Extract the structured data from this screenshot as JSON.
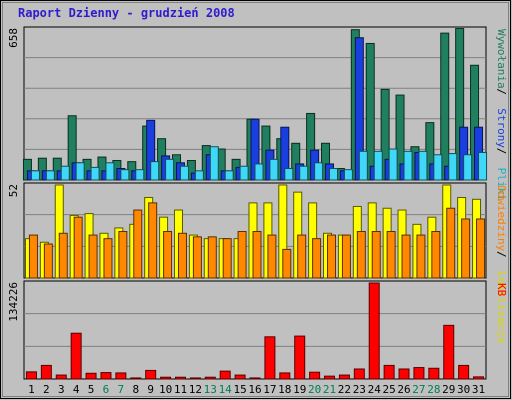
{
  "chart_data": [
    {
      "type": "bar",
      "title": "Raport Dzienny -  grudzień 2008",
      "ymax_label": "658",
      "categories": [
        "1",
        "2",
        "3",
        "4",
        "5",
        "6",
        "7",
        "8",
        "9",
        "10",
        "11",
        "12",
        "13",
        "14",
        "15",
        "16",
        "17",
        "18",
        "19",
        "20",
        "21",
        "22",
        "23",
        "24",
        "25",
        "26",
        "27",
        "28",
        "29",
        "30",
        "31"
      ],
      "weekend_days": [
        "6",
        "7",
        "13",
        "14",
        "20",
        "21",
        "27",
        "28"
      ],
      "series": [
        {
          "name": "Wywołania",
          "color": "#1f7f5f",
          "values": [
            90,
            95,
            95,
            280,
            90,
            100,
            85,
            80,
            235,
            180,
            110,
            85,
            150,
            135,
            90,
            265,
            235,
            180,
            160,
            290,
            160,
            50,
            655,
            595,
            395,
            370,
            145,
            250,
            640,
            660,
            500
          ]
        },
        {
          "name": "Strony",
          "color": "#1a3fe0",
          "values": [
            40,
            40,
            40,
            75,
            40,
            40,
            50,
            40,
            260,
            105,
            75,
            30,
            110,
            40,
            55,
            265,
            130,
            230,
            70,
            130,
            70,
            40,
            620,
            60,
            90,
            70,
            120,
            70,
            60,
            230,
            230
          ]
        },
        {
          "name": "Pliki",
          "color": "#40d8f8",
          "values": [
            40,
            40,
            60,
            75,
            55,
            75,
            45,
            45,
            80,
            90,
            60,
            40,
            145,
            40,
            60,
            70,
            90,
            50,
            60,
            75,
            50,
            45,
            125,
            125,
            135,
            125,
            125,
            110,
            115,
            110,
            120
          ]
        }
      ],
      "series_label_colors": [
        "#1f7f5f",
        "#1a3fe0",
        "#1ab0c0"
      ],
      "ylim": [
        0,
        658
      ]
    },
    {
      "type": "bar",
      "ymax_label": "52",
      "categories": [
        "1",
        "2",
        "3",
        "4",
        "5",
        "6",
        "7",
        "8",
        "9",
        "10",
        "11",
        "12",
        "13",
        "14",
        "15",
        "16",
        "17",
        "18",
        "19",
        "20",
        "21",
        "22",
        "23",
        "24",
        "25",
        "26",
        "27",
        "28",
        "29",
        "30",
        "31"
      ],
      "series": [
        {
          "name": "Odwiedziny",
          "color": "#ffff00",
          "values": [
            22,
            20,
            52,
            35,
            36,
            25,
            28,
            30,
            45,
            34,
            38,
            24,
            22,
            22,
            22,
            42,
            42,
            52,
            48,
            42,
            25,
            24,
            40,
            42,
            39,
            38,
            30,
            34,
            52,
            45,
            44
          ]
        },
        {
          "name": "Lokalizacje",
          "color": "#ff8800",
          "values": [
            24,
            19,
            25,
            34,
            24,
            22,
            26,
            38,
            42,
            26,
            25,
            23,
            23,
            22,
            26,
            26,
            24,
            16,
            24,
            22,
            24,
            24,
            26,
            26,
            26,
            24,
            24,
            26,
            39,
            33,
            33
          ]
        }
      ],
      "series_label_colors": [
        "#ff8000",
        "#d8d800"
      ],
      "ylim": [
        0,
        52
      ]
    },
    {
      "type": "bar",
      "ymax_label": "134226",
      "categories": [
        "1",
        "2",
        "3",
        "4",
        "5",
        "6",
        "7",
        "8",
        "9",
        "10",
        "11",
        "12",
        "13",
        "14",
        "15",
        "16",
        "17",
        "18",
        "19",
        "20",
        "21",
        "22",
        "23",
        "24",
        "25",
        "26",
        "27",
        "28",
        "29",
        "30",
        "31"
      ],
      "series": [
        {
          "name": "KB",
          "color": "#ff0000",
          "values": [
            10000,
            19000,
            5500,
            64000,
            8000,
            9000,
            8500,
            1500,
            12000,
            2500,
            2500,
            1500,
            2500,
            11000,
            5500,
            1500,
            59000,
            8500,
            60000,
            9500,
            4000,
            5500,
            14000,
            134226,
            19000,
            14000,
            16000,
            15000,
            75000,
            19000,
            3000
          ]
        }
      ],
      "series_label_colors": [
        "#ff0000"
      ],
      "ylim": [
        0,
        134226
      ]
    }
  ]
}
